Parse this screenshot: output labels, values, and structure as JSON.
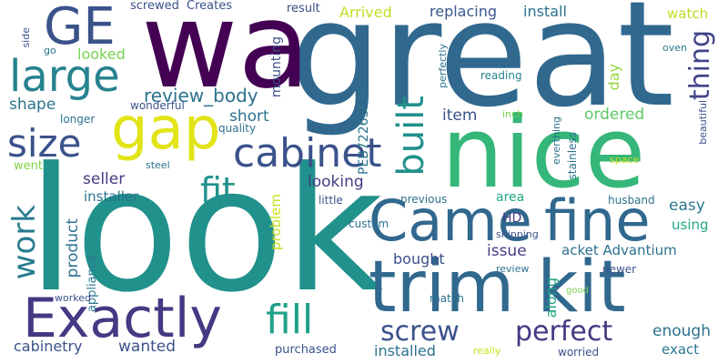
{
  "words": [
    {
      "text": "look",
      "color": "#21918c"
    },
    {
      "text": "great",
      "color": "#31688e"
    },
    {
      "text": "wa",
      "color": "#440154"
    },
    {
      "text": "nice",
      "color": "#35b779"
    },
    {
      "text": "trim kit",
      "color": "#31688e"
    },
    {
      "text": "Came",
      "color": "#31688e"
    },
    {
      "text": "fine",
      "color": "#31688e"
    },
    {
      "text": "Exactly",
      "color": "#443983"
    },
    {
      "text": "gap",
      "color": "#e2e418"
    },
    {
      "text": "large",
      "color": "#26828e"
    },
    {
      "text": "GE",
      "color": "#3b528b"
    },
    {
      "text": "cabinet",
      "color": "#3b528b"
    },
    {
      "text": "size",
      "color": "#3b528b"
    },
    {
      "text": "built",
      "color": "#21918c"
    },
    {
      "text": "fill",
      "color": "#1fa188"
    },
    {
      "text": "fit",
      "color": "#21918c"
    },
    {
      "text": "work",
      "color": "#287c8e"
    },
    {
      "text": "screw",
      "color": "#3b528b"
    },
    {
      "text": "perfect",
      "color": "#443983"
    },
    {
      "text": "thing",
      "color": "#414487"
    },
    {
      "text": "review_body",
      "color": "#2c728e"
    },
    {
      "text": "shape",
      "color": "#2c728e"
    },
    {
      "text": "looked",
      "color": "#7ad151"
    },
    {
      "text": "short",
      "color": "#2c728e"
    },
    {
      "text": "item",
      "color": "#3b528b"
    },
    {
      "text": "ordered",
      "color": "#5ec962"
    },
    {
      "text": "seller",
      "color": "#443983"
    },
    {
      "text": "looking",
      "color": "#433e85"
    },
    {
      "text": "easy",
      "color": "#2a788e"
    },
    {
      "text": "product",
      "color": "#2c728e"
    },
    {
      "text": "issue",
      "color": "#433e85"
    },
    {
      "text": "bought",
      "color": "#3b528b"
    },
    {
      "text": "along",
      "color": "#20a386"
    },
    {
      "text": "acket Advantium",
      "color": "#2c728e"
    },
    {
      "text": "wanted",
      "color": "#3b528b"
    },
    {
      "text": "enough",
      "color": "#2c728e"
    },
    {
      "text": "cabinetry",
      "color": "#3b528b"
    },
    {
      "text": "installed",
      "color": "#2c728e"
    },
    {
      "text": "exact",
      "color": "#2a788e"
    },
    {
      "text": "Arrived",
      "color": "#bddf26"
    },
    {
      "text": "replacing",
      "color": "#39568c"
    },
    {
      "text": "install",
      "color": "#2c728e"
    },
    {
      "text": "watch",
      "color": "#bddf26"
    },
    {
      "text": "mounting",
      "color": "#3b528b"
    },
    {
      "text": "PEB7226SFSS",
      "color": "#2c728e"
    },
    {
      "text": "day",
      "color": "#95d840"
    },
    {
      "text": "installer",
      "color": "#2c728e"
    },
    {
      "text": "went",
      "color": "#84d44b"
    },
    {
      "text": "HD",
      "color": "#433e85"
    },
    {
      "text": "area",
      "color": "#22a884"
    },
    {
      "text": "using",
      "color": "#22a884"
    },
    {
      "text": "problem",
      "color": "#c8e020"
    },
    {
      "text": "appliance",
      "color": "#2a788e"
    },
    {
      "text": "purchased",
      "color": "#3b528b"
    },
    {
      "text": "screwed",
      "color": "#3b528b"
    },
    {
      "text": "Creates",
      "color": "#3b528b"
    },
    {
      "text": "result",
      "color": "#3e4989"
    },
    {
      "text": "perfectly",
      "color": "#2c728e"
    },
    {
      "text": "reading",
      "color": "#26828e"
    },
    {
      "text": "oven",
      "color": "#2a788e"
    },
    {
      "text": "side",
      "color": "#3b528b"
    },
    {
      "text": "go",
      "color": "#2c728e"
    },
    {
      "text": "longer",
      "color": "#2c728e"
    },
    {
      "text": "wonderful",
      "color": "#3b528b"
    },
    {
      "text": "quality",
      "color": "#2c728e"
    },
    {
      "text": "steel",
      "color": "#2c728e"
    },
    {
      "text": "little",
      "color": "#3b528b"
    },
    {
      "text": "previous",
      "color": "#2c728e"
    },
    {
      "text": "husband",
      "color": "#2c728e"
    },
    {
      "text": "custom",
      "color": "#2c728e"
    },
    {
      "text": "shipping",
      "color": "#3b528b"
    },
    {
      "text": "review",
      "color": "#2c728e"
    },
    {
      "text": "newer",
      "color": "#3b528b"
    },
    {
      "text": "worked",
      "color": "#3b528b"
    },
    {
      "text": "match",
      "color": "#2c728e"
    },
    {
      "text": "good",
      "color": "#7ad151"
    },
    {
      "text": "really",
      "color": "#c8e020"
    },
    {
      "text": "worried",
      "color": "#3b528b"
    },
    {
      "text": "inch",
      "color": "#7ad151"
    },
    {
      "text": "everthing",
      "color": "#2c728e"
    },
    {
      "text": "stainless",
      "color": "#2c728e"
    },
    {
      "text": "space",
      "color": "#c8e020"
    },
    {
      "text": "beautiful",
      "color": "#3b528b"
    }
  ]
}
